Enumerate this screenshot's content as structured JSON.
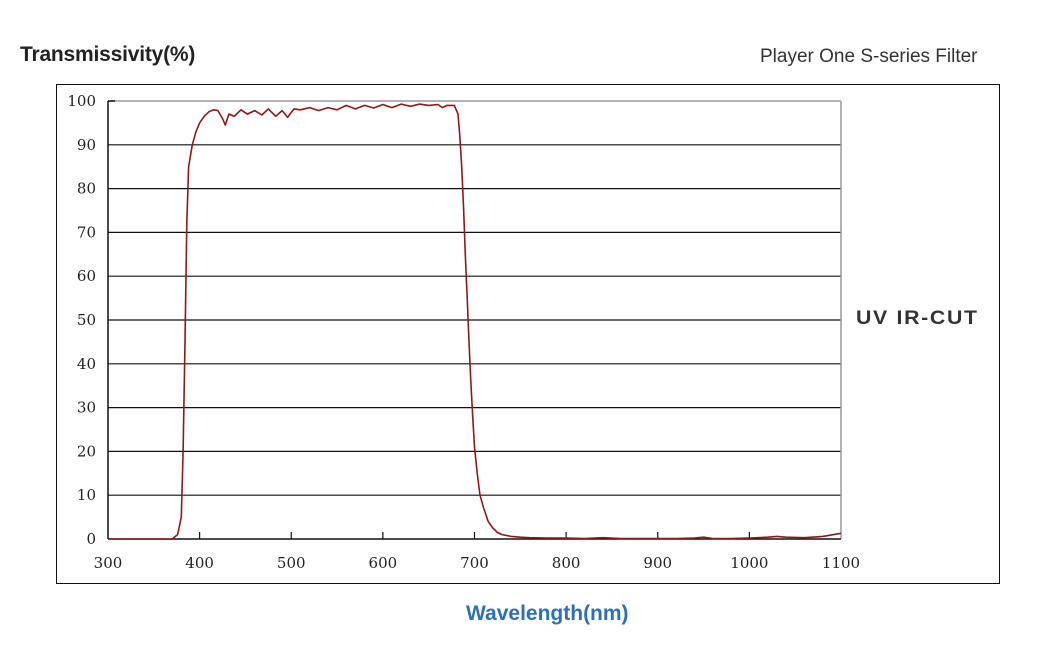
{
  "header": {
    "y_axis_title": "Transmissivity(%)",
    "brand_title": "Player One S-series Filter"
  },
  "side_label": "UV IR-CUT",
  "footer": {
    "x_axis_title": "Wavelength(nm)"
  },
  "colors": {
    "curve": "#8b1a1a",
    "x_title": "#2f6fb5",
    "grid": "#111111"
  },
  "chart_data": {
    "type": "line",
    "title": "Player One S-series Filter",
    "subtitle": "UV IR-CUT",
    "xlabel": "Wavelength(nm)",
    "ylabel": "Transmissivity(%)",
    "xlim": [
      300,
      1100
    ],
    "ylim": [
      0,
      100
    ],
    "x_ticks": [
      300,
      400,
      500,
      600,
      700,
      800,
      900,
      1000,
      1100
    ],
    "y_ticks": [
      0,
      10,
      20,
      30,
      40,
      50,
      60,
      70,
      80,
      90,
      100
    ],
    "grid": "horizontal",
    "legend": null,
    "series": [
      {
        "name": "UV IR-CUT",
        "x": [
          300,
          370,
          376,
          380,
          382,
          384,
          386,
          388,
          392,
          396,
          400,
          405,
          410,
          415,
          420,
          425,
          428,
          432,
          438,
          445,
          452,
          460,
          468,
          475,
          483,
          490,
          496,
          503,
          510,
          520,
          530,
          540,
          550,
          560,
          570,
          580,
          590,
          600,
          610,
          620,
          630,
          640,
          650,
          660,
          665,
          670,
          678,
          682,
          684,
          686,
          688,
          690,
          692,
          694,
          696,
          698,
          700,
          703,
          706,
          710,
          715,
          720,
          725,
          730,
          740,
          750,
          760,
          780,
          800,
          820,
          840,
          860,
          880,
          900,
          920,
          940,
          950,
          960,
          980,
          1000,
          1020,
          1030,
          1040,
          1060,
          1080,
          1100
        ],
        "values": [
          0,
          0,
          1,
          5,
          20,
          45,
          72,
          85,
          90,
          93,
          95,
          96.5,
          97.5,
          98,
          97.8,
          96,
          94.5,
          97,
          96.5,
          98,
          97,
          97.8,
          96.8,
          98.2,
          96.5,
          97.8,
          96.3,
          98.2,
          98,
          98.5,
          97.8,
          98.5,
          98,
          99,
          98.2,
          99,
          98.4,
          99.2,
          98.5,
          99.3,
          98.8,
          99.3,
          99,
          99.2,
          98.5,
          99,
          99,
          97,
          92,
          85,
          76,
          65,
          55,
          45,
          36,
          28,
          21,
          15,
          10,
          7,
          4,
          2.5,
          1.5,
          1,
          0.6,
          0.4,
          0.3,
          0.2,
          0.2,
          0.1,
          0.3,
          0.1,
          0.1,
          0.1,
          0.1,
          0.2,
          0.4,
          0.1,
          0.1,
          0.2,
          0.4,
          0.6,
          0.4,
          0.3,
          0.6,
          1.3
        ]
      }
    ]
  }
}
